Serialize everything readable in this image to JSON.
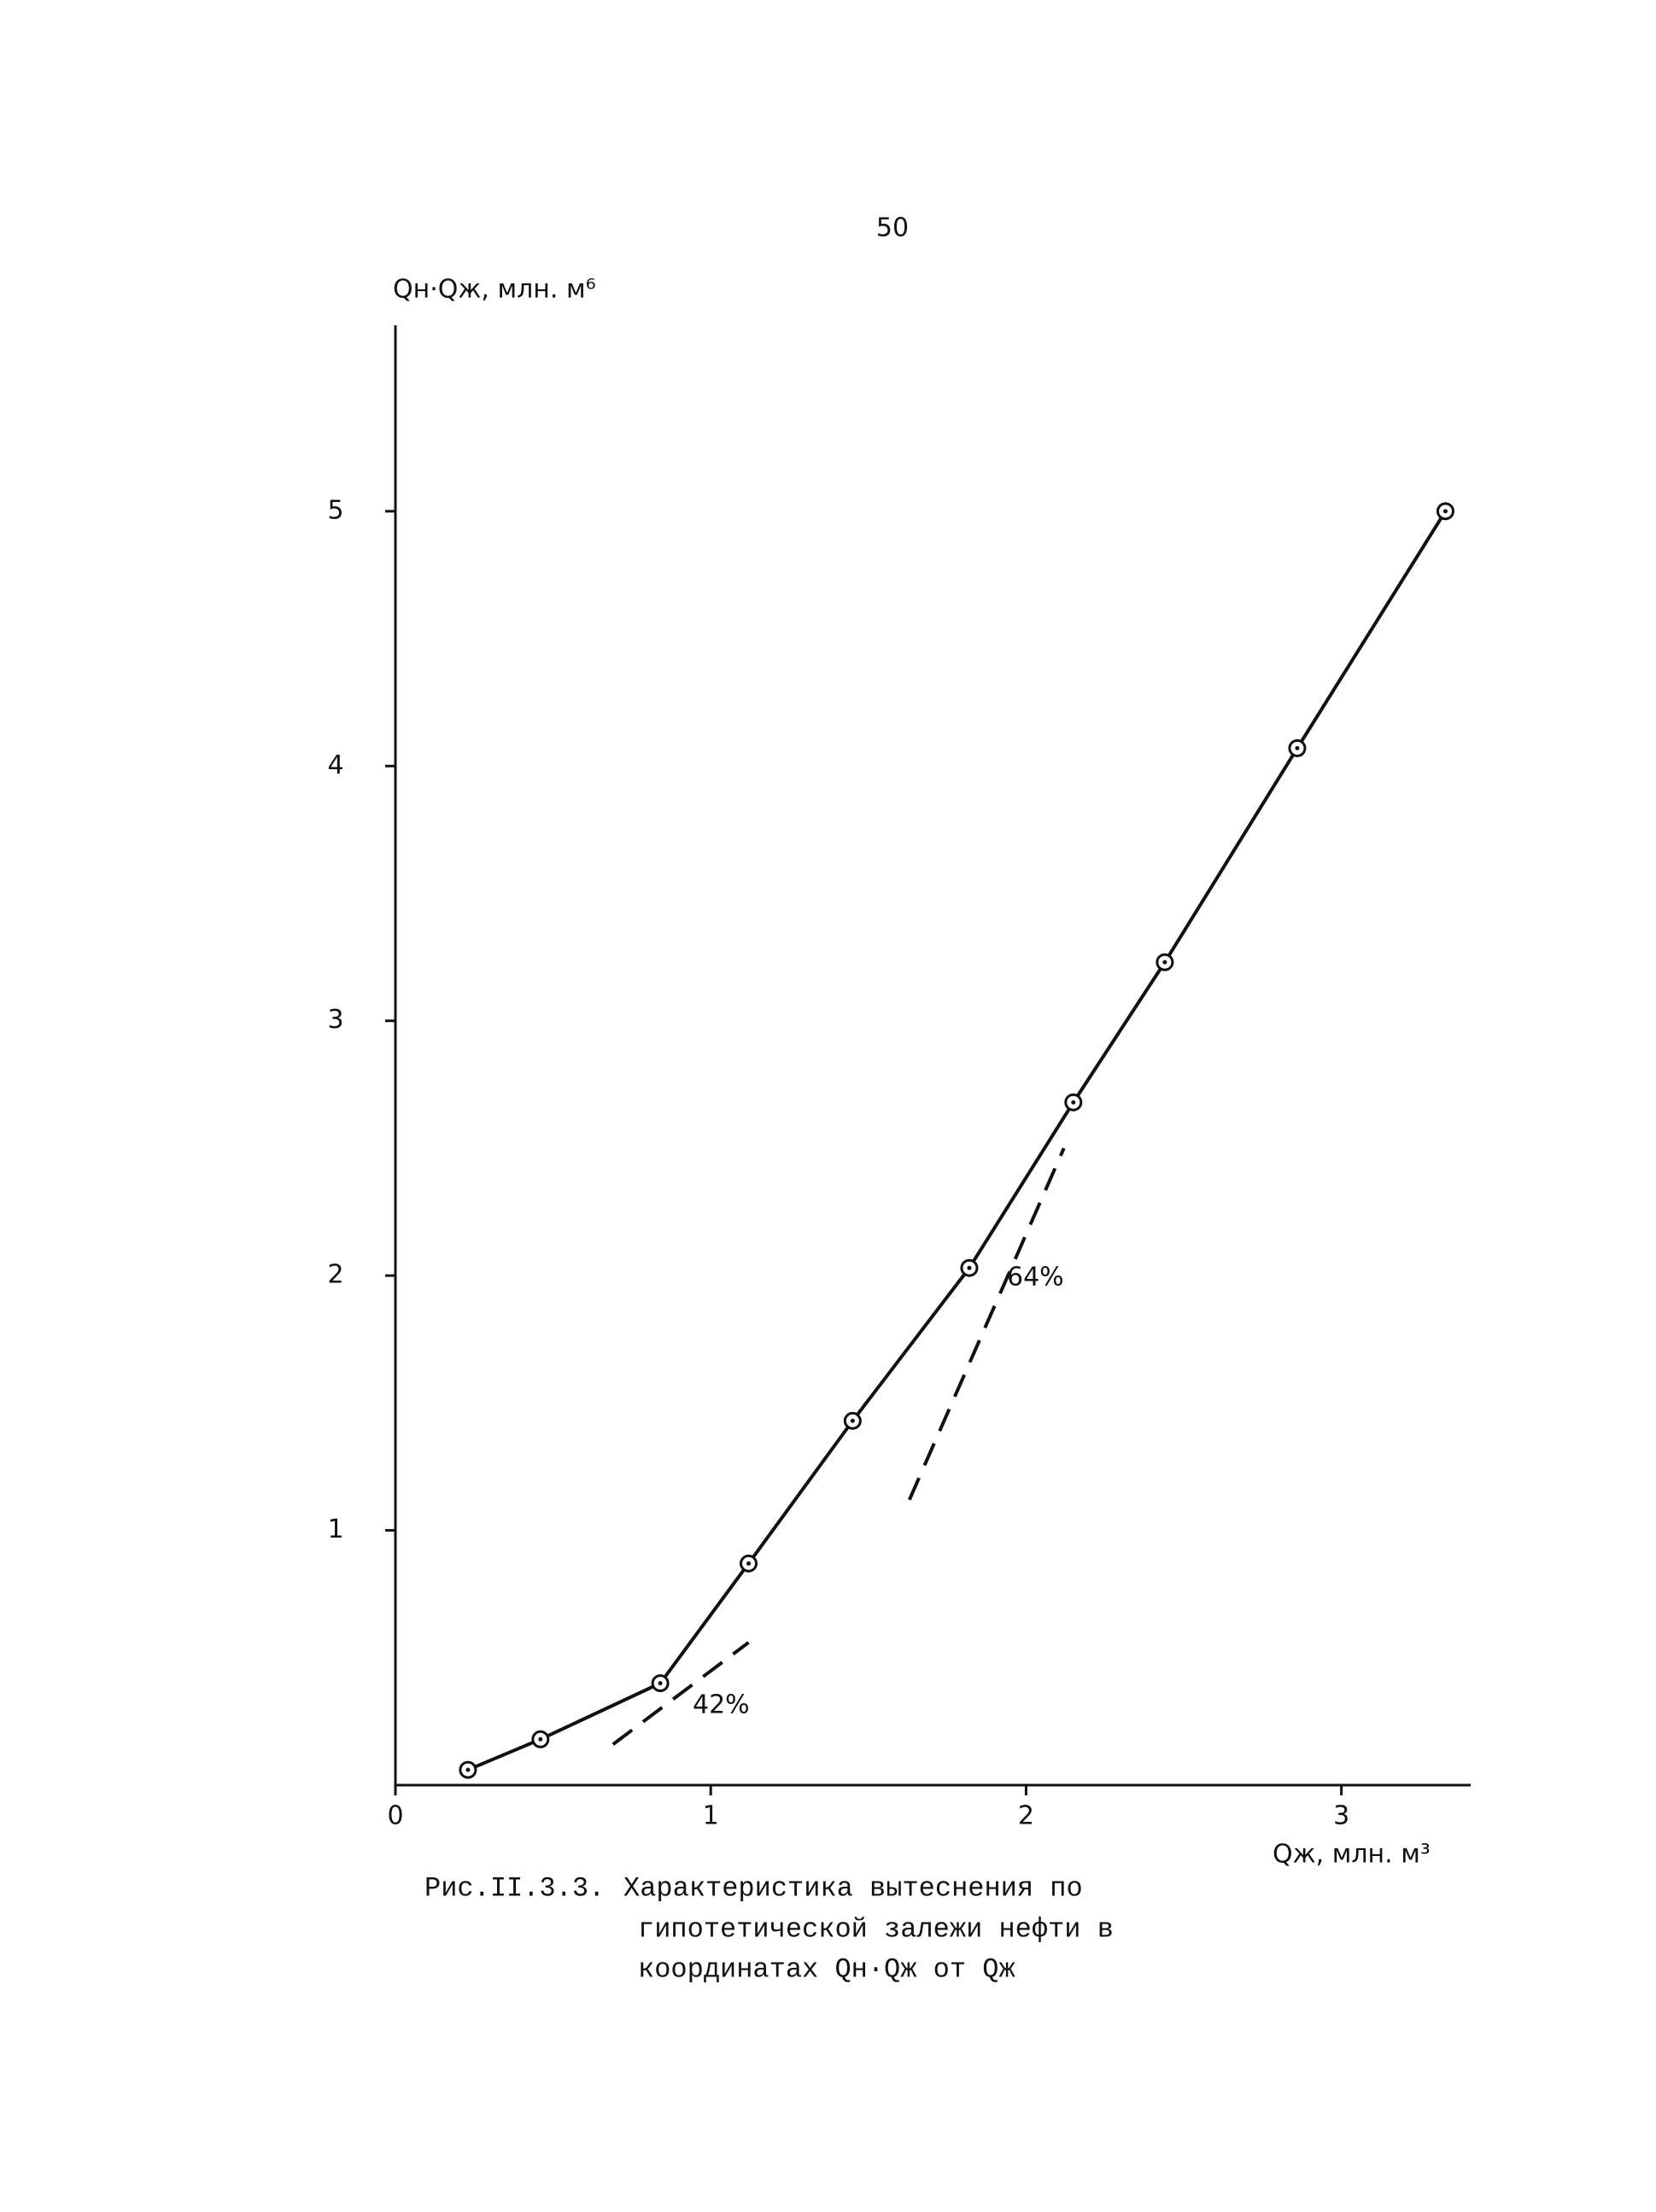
{
  "page_number": "50",
  "chart_data": {
    "type": "line",
    "ylabel": "Qн·Qж, млн. м⁶",
    "xlabel": "Qж, млн. м³",
    "xlim": [
      0,
      3.41
    ],
    "ylim": [
      0,
      5.73
    ],
    "xticks": [
      0,
      1,
      2,
      3
    ],
    "yticks": [
      1,
      2,
      3,
      4,
      5
    ],
    "grid": false,
    "series": [
      {
        "color": "#111111",
        "x": [
          0.23,
          0.46,
          0.84,
          1.12,
          1.45,
          1.82,
          2.15,
          2.44,
          2.86,
          3.33
        ],
        "values": [
          0.06,
          0.18,
          0.4,
          0.87,
          1.43,
          2.03,
          2.68,
          3.23,
          4.07,
          5.0
        ]
      }
    ],
    "tangents": [
      {
        "x": [
          0.69,
          1.12
        ],
        "values": [
          0.16,
          0.56
        ],
        "label": "42%"
      },
      {
        "x": [
          1.63,
          2.12
        ],
        "values": [
          1.12,
          2.5
        ],
        "label": "64%"
      }
    ]
  },
  "caption": {
    "label": "Рис.II.3.3.",
    "lines": [
      "Характеристика вытеснения по",
      "гипотетической залежи нефти в",
      "координатах Qн·Qж от Qж"
    ]
  }
}
